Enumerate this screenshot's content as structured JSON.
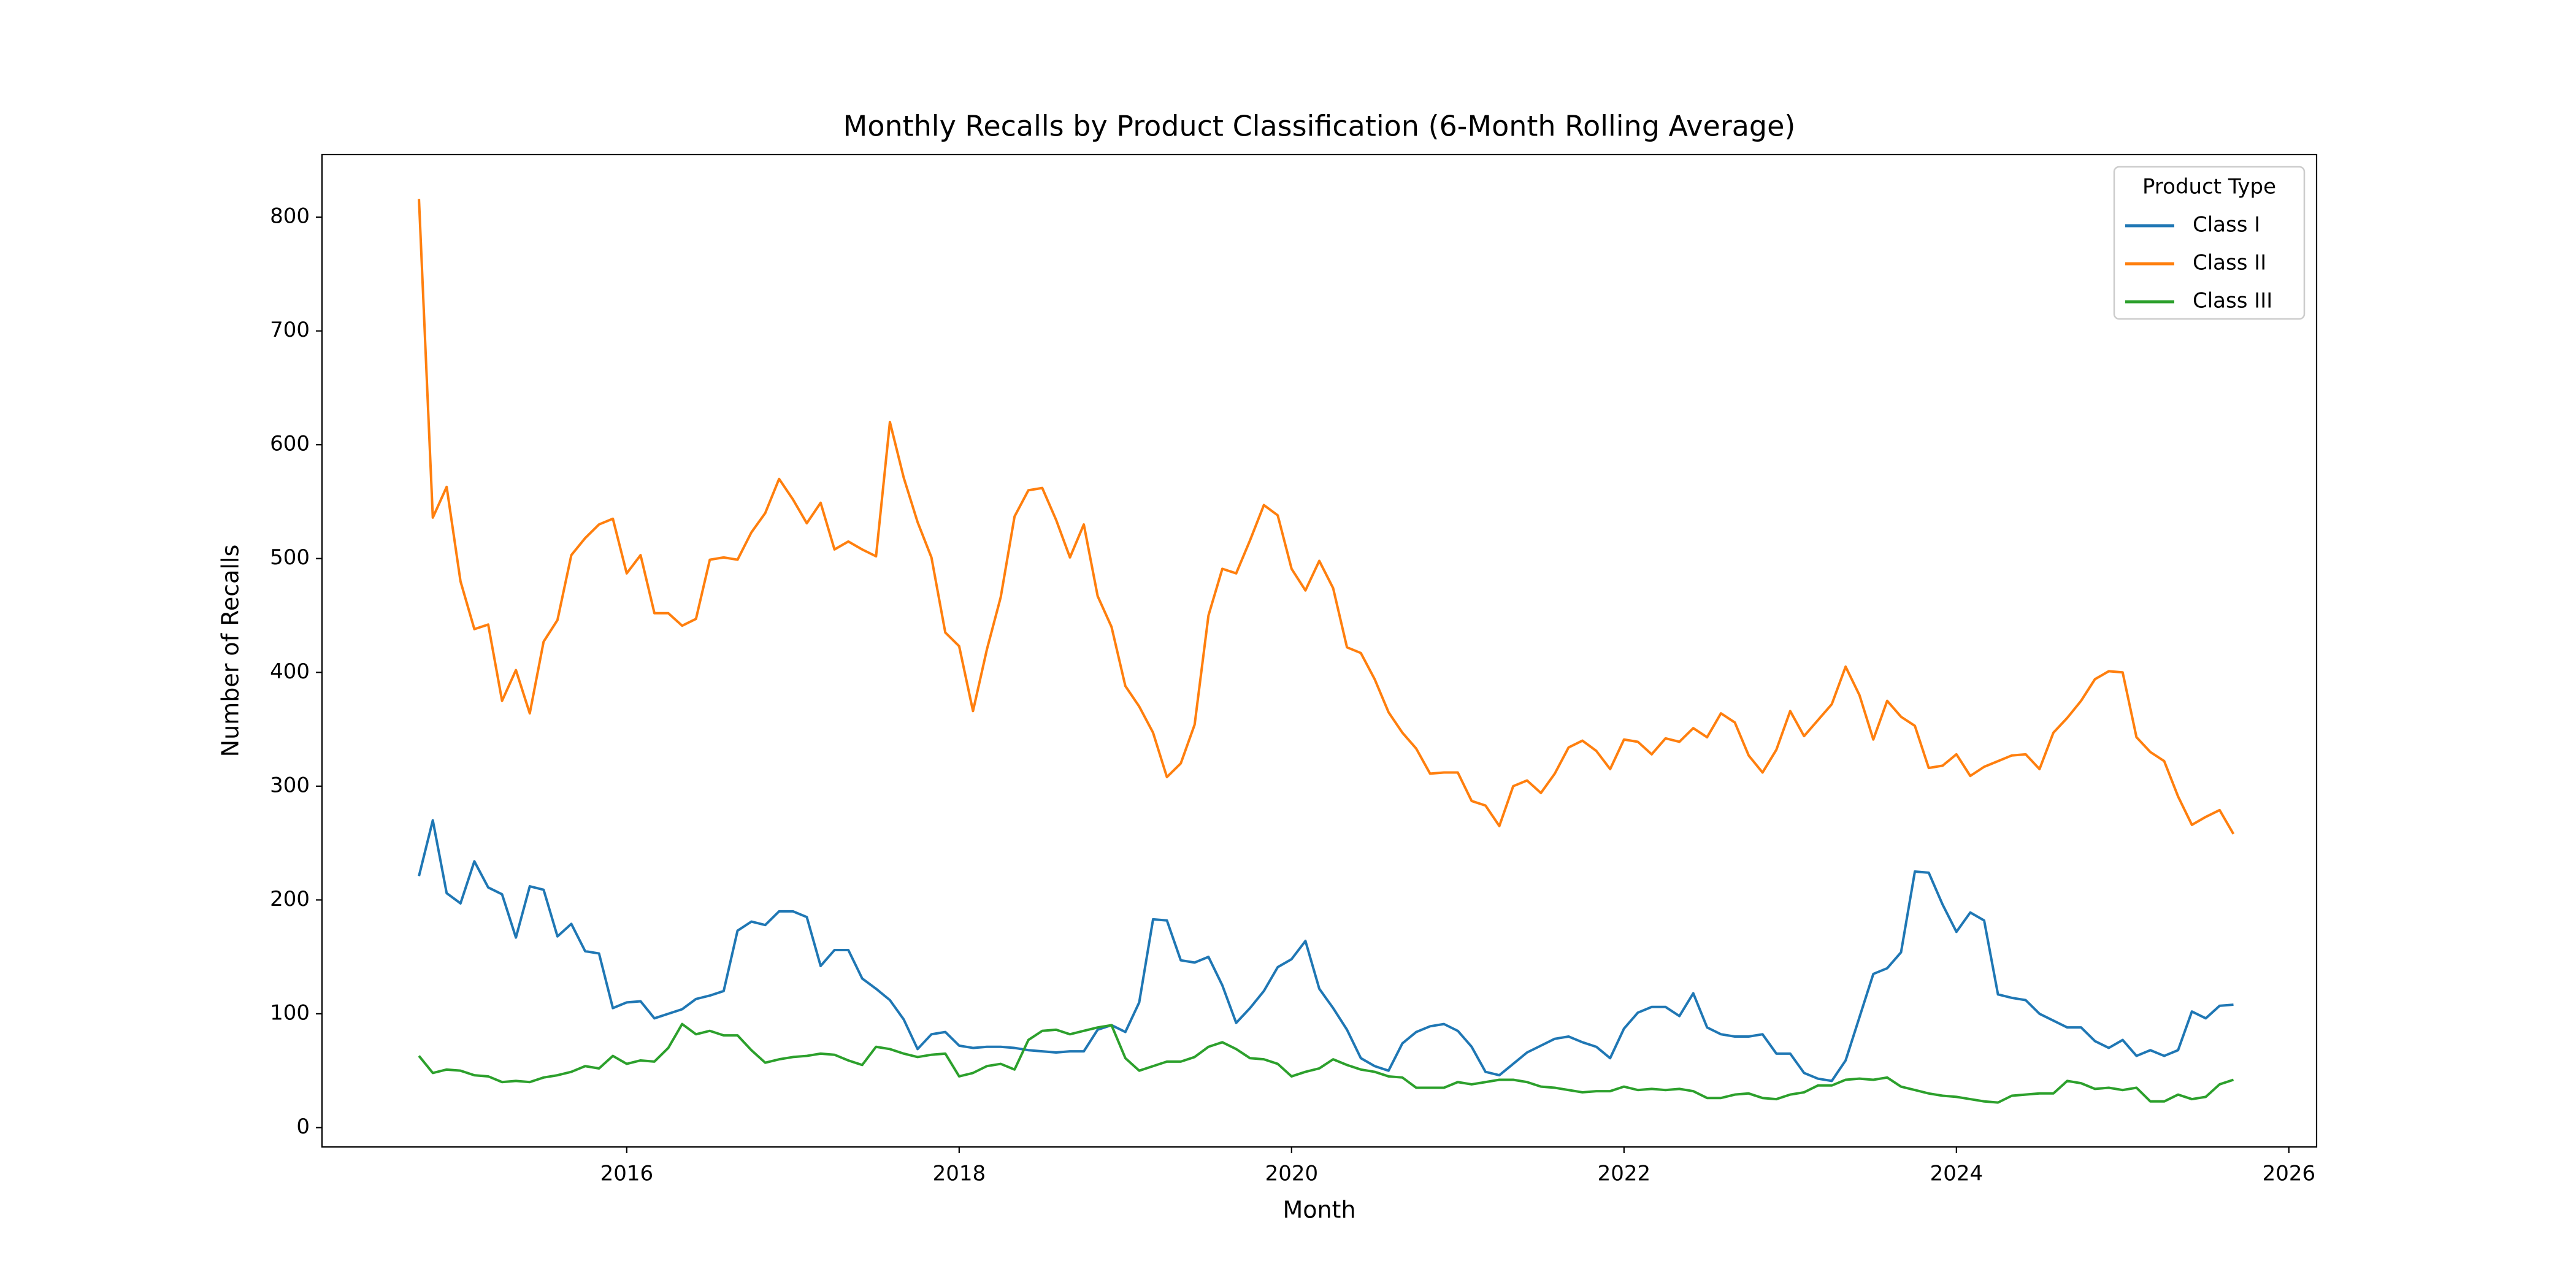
{
  "chart_data": {
    "type": "line",
    "title": "Monthly Recalls by Product Classification (6-Month Rolling Average)",
    "x_label": "Month",
    "y_label": "Number of Recalls",
    "legend_title": "Product Type",
    "legend": "upper right",
    "grid": false,
    "xlim": [
      "2014-03",
      "2026-03"
    ],
    "ylim": [
      -17,
      855
    ],
    "xticks": [
      {
        "value": "2016-01",
        "label": "2016"
      },
      {
        "value": "2018-01",
        "label": "2018"
      },
      {
        "value": "2020-01",
        "label": "2020"
      },
      {
        "value": "2022-01",
        "label": "2022"
      },
      {
        "value": "2024-01",
        "label": "2024"
      },
      {
        "value": "2026-01",
        "label": "2026"
      }
    ],
    "yticks": [
      0,
      100,
      200,
      300,
      400,
      500,
      600,
      700,
      800
    ],
    "x": [
      "2014-10",
      "2014-11",
      "2014-12",
      "2015-01",
      "2015-02",
      "2015-03",
      "2015-04",
      "2015-05",
      "2015-06",
      "2015-07",
      "2015-08",
      "2015-09",
      "2015-10",
      "2015-11",
      "2015-12",
      "2016-01",
      "2016-02",
      "2016-03",
      "2016-04",
      "2016-05",
      "2016-06",
      "2016-07",
      "2016-08",
      "2016-09",
      "2016-10",
      "2016-11",
      "2016-12",
      "2017-01",
      "2017-02",
      "2017-03",
      "2017-04",
      "2017-05",
      "2017-06",
      "2017-07",
      "2017-08",
      "2017-09",
      "2017-10",
      "2017-11",
      "2017-12",
      "2018-01",
      "2018-02",
      "2018-03",
      "2018-04",
      "2018-05",
      "2018-06",
      "2018-07",
      "2018-08",
      "2018-09",
      "2018-10",
      "2018-11",
      "2018-12",
      "2019-01",
      "2019-02",
      "2019-03",
      "2019-04",
      "2019-05",
      "2019-06",
      "2019-07",
      "2019-08",
      "2019-09",
      "2019-10",
      "2019-11",
      "2019-12",
      "2020-01",
      "2020-02",
      "2020-03",
      "2020-04",
      "2020-05",
      "2020-06",
      "2020-07",
      "2020-08",
      "2020-09",
      "2020-10",
      "2020-11",
      "2020-12",
      "2021-01",
      "2021-02",
      "2021-03",
      "2021-04",
      "2021-05",
      "2021-06",
      "2021-07",
      "2021-08",
      "2021-09",
      "2021-10",
      "2021-11",
      "2021-12",
      "2022-01",
      "2022-02",
      "2022-03",
      "2022-04",
      "2022-05",
      "2022-06",
      "2022-07",
      "2022-08",
      "2022-09",
      "2022-10",
      "2022-11",
      "2022-12",
      "2023-01",
      "2023-02",
      "2023-03",
      "2023-04",
      "2023-05",
      "2023-06",
      "2023-07",
      "2023-08",
      "2023-09",
      "2023-10",
      "2023-11",
      "2023-12",
      "2024-01",
      "2024-02",
      "2024-03",
      "2024-04",
      "2024-05",
      "2024-06",
      "2024-07",
      "2024-08",
      "2024-09",
      "2024-10",
      "2024-11",
      "2024-12",
      "2025-01",
      "2025-02",
      "2025-03",
      "2025-04",
      "2025-05",
      "2025-06",
      "2025-07",
      "2025-08",
      "2025-09"
    ],
    "series": [
      {
        "name": "Class I",
        "color": "#1f77b4",
        "values": [
          221,
          270,
          206,
          197,
          234,
          211,
          205,
          167,
          212,
          209,
          168,
          179,
          155,
          153,
          105,
          110,
          111,
          96,
          100,
          104,
          113,
          116,
          120,
          173,
          181,
          178,
          190,
          190,
          185,
          142,
          156,
          156,
          131,
          122,
          112,
          95,
          69,
          82,
          84,
          72,
          70,
          71,
          71,
          70,
          68,
          67,
          66,
          67,
          67,
          86,
          90,
          84,
          110,
          183,
          182,
          147,
          145,
          150,
          125,
          92,
          105,
          120,
          141,
          148,
          164,
          122,
          105,
          86,
          61,
          54,
          50,
          74,
          84,
          89,
          91,
          85,
          71,
          49,
          46,
          56,
          66,
          72,
          78,
          80,
          75,
          71,
          61,
          87,
          101,
          106,
          106,
          98,
          118,
          88,
          82,
          80,
          80,
          82,
          65,
          65,
          48,
          43,
          41,
          59,
          97,
          135,
          140,
          154,
          225,
          224,
          196,
          172,
          189,
          182,
          117,
          114,
          112,
          100,
          94,
          88,
          88,
          76,
          70,
          77,
          63,
          68,
          63,
          68,
          102,
          96,
          107,
          108
        ]
      },
      {
        "name": "Class II",
        "color": "#ff7f0e",
        "values": [
          816,
          536,
          563,
          480,
          438,
          442,
          375,
          402,
          364,
          427,
          446,
          503,
          518,
          530,
          535,
          487,
          503,
          452,
          452,
          441,
          447,
          499,
          501,
          499,
          523,
          540,
          570,
          552,
          531,
          549,
          508,
          515,
          508,
          502,
          620,
          571,
          532,
          501,
          435,
          423,
          366,
          420,
          466,
          537,
          560,
          562,
          534,
          501,
          530,
          467,
          440,
          388,
          370,
          347,
          308,
          320,
          354,
          450,
          491,
          487,
          516,
          547,
          538,
          491,
          472,
          498,
          474,
          422,
          417,
          394,
          365,
          347,
          333,
          311,
          312,
          312,
          287,
          283,
          265,
          300,
          305,
          294,
          311,
          334,
          340,
          331,
          315,
          341,
          339,
          328,
          342,
          339,
          351,
          343,
          364,
          356,
          327,
          312,
          332,
          366,
          344,
          358,
          372,
          405,
          380,
          341,
          375,
          361,
          353,
          316,
          318,
          328,
          309,
          317,
          322,
          327,
          328,
          315,
          347,
          360,
          375,
          394,
          401,
          400,
          343,
          330,
          322,
          291,
          266,
          273,
          279,
          258
        ]
      },
      {
        "name": "Class III",
        "color": "#2ca02c",
        "values": [
          63,
          48,
          51,
          50,
          46,
          45,
          40,
          41,
          40,
          44,
          46,
          49,
          54,
          52,
          63,
          56,
          59,
          58,
          70,
          91,
          82,
          85,
          81,
          81,
          68,
          57,
          60,
          62,
          63,
          65,
          64,
          59,
          55,
          71,
          69,
          65,
          62,
          64,
          65,
          45,
          48,
          54,
          56,
          51,
          77,
          85,
          86,
          82,
          85,
          88,
          90,
          61,
          50,
          54,
          58,
          58,
          62,
          71,
          75,
          69,
          61,
          60,
          56,
          45,
          49,
          52,
          60,
          55,
          51,
          49,
          45,
          44,
          35,
          35,
          35,
          40,
          38,
          40,
          42,
          42,
          40,
          36,
          35,
          33,
          31,
          32,
          32,
          36,
          33,
          34,
          33,
          34,
          32,
          26,
          26,
          29,
          30,
          26,
          25,
          29,
          31,
          37,
          37,
          42,
          43,
          42,
          44,
          36,
          33,
          30,
          28,
          27,
          25,
          23,
          22,
          28,
          29,
          30,
          30,
          41,
          39,
          34,
          35,
          33,
          35,
          23,
          23,
          29,
          25,
          27,
          38,
          42
        ]
      }
    ]
  }
}
